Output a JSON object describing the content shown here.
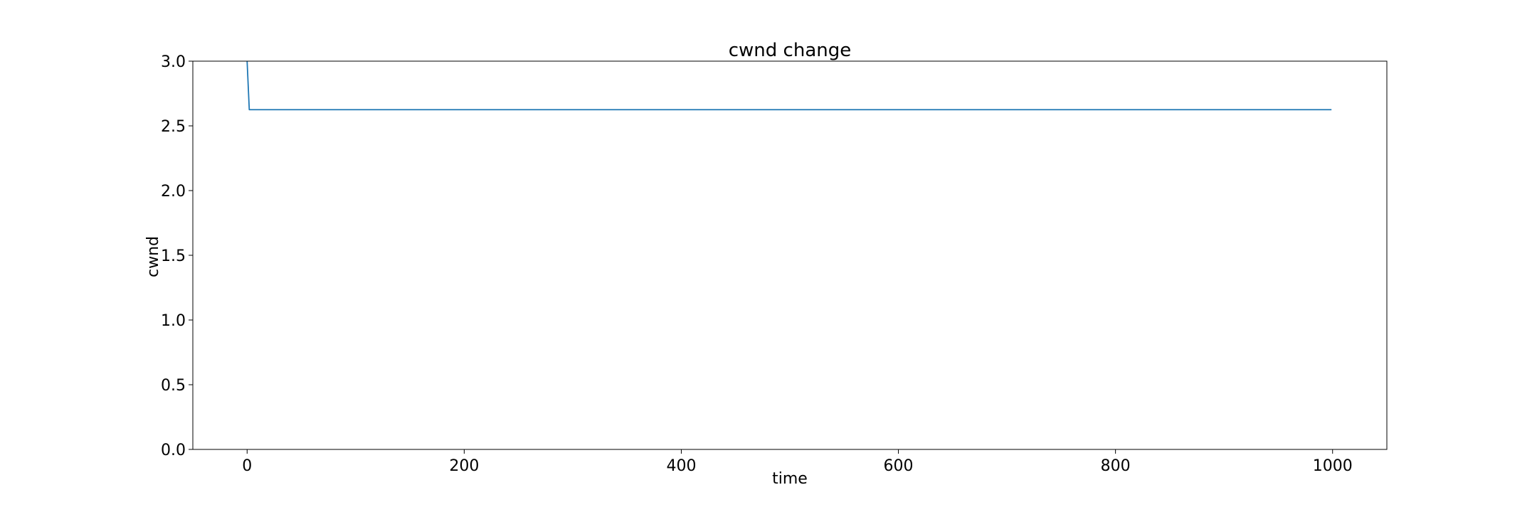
{
  "chart_data": {
    "type": "line",
    "title": "cwnd change",
    "xlabel": "time",
    "ylabel": "cwnd",
    "xlim": [
      -50,
      1050
    ],
    "ylim": [
      0.0,
      3.0
    ],
    "x_ticks": [
      0,
      200,
      400,
      600,
      800,
      1000
    ],
    "y_ticks": [
      "0.0",
      "0.5",
      "1.0",
      "1.5",
      "2.0",
      "2.5",
      "3.0"
    ],
    "grid": false,
    "legend": "none",
    "series": [
      {
        "color": "#1f77b4",
        "points": [
          {
            "x": 0,
            "y": 3.0
          },
          {
            "x": 2,
            "y": 2.625
          },
          {
            "x": 999,
            "y": 2.625
          }
        ]
      }
    ]
  }
}
